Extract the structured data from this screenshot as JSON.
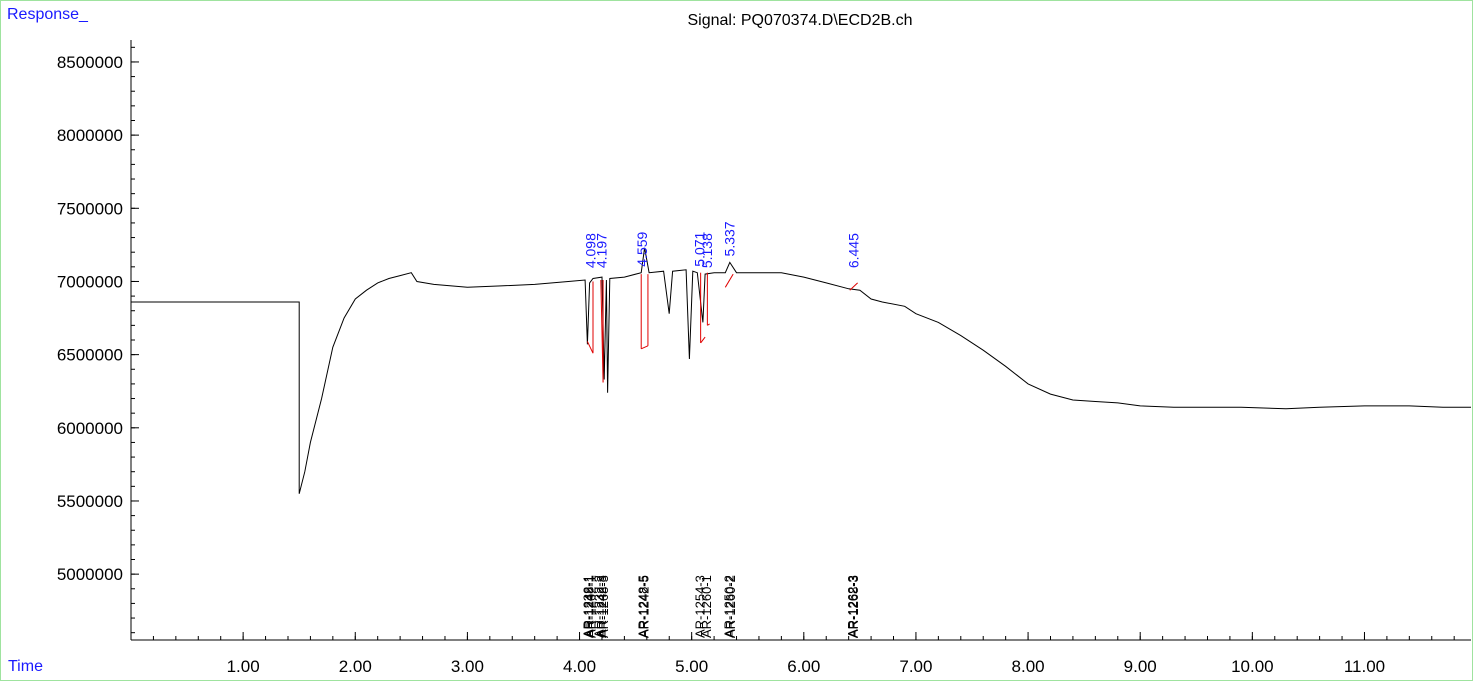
{
  "header": {
    "y_axis_title": "Response_",
    "x_axis_title": "Time",
    "signal_title": "Signal: PQ070374.D\\ECD2B.ch"
  },
  "colors": {
    "trace": "#000000",
    "baseline_segments": "#e00000",
    "peak_labels": "#1a1aff",
    "frame": "#9fe39f"
  },
  "chart_data": {
    "type": "line",
    "title": "Signal: PQ070374.D\\ECD2B.ch",
    "xlabel": "Time",
    "ylabel": "Response_",
    "xlim": [
      0.0,
      11.95
    ],
    "ylim": [
      4550000,
      8650000
    ],
    "x_ticks": [
      1.0,
      2.0,
      3.0,
      4.0,
      5.0,
      6.0,
      7.0,
      8.0,
      9.0,
      10.0,
      11.0
    ],
    "x_tick_labels": [
      "1.00",
      "2.00",
      "3.00",
      "4.00",
      "5.00",
      "6.00",
      "7.00",
      "8.00",
      "9.00",
      "10.00",
      "11.00"
    ],
    "y_ticks": [
      5000000,
      5500000,
      6000000,
      6500000,
      7000000,
      7500000,
      8000000,
      8500000
    ],
    "y_tick_labels": [
      "5000000",
      "5500000",
      "6000000",
      "6500000",
      "7000000",
      "7500000",
      "8000000",
      "8500000"
    ],
    "series": [
      {
        "points": [
          [
            0.0,
            6860000
          ],
          [
            1.5,
            6860000
          ],
          [
            1.5,
            5550000
          ],
          [
            1.55,
            5700000
          ],
          [
            1.6,
            5900000
          ],
          [
            1.7,
            6200000
          ],
          [
            1.8,
            6550000
          ],
          [
            1.9,
            6750000
          ],
          [
            2.0,
            6880000
          ],
          [
            2.1,
            6940000
          ],
          [
            2.2,
            6990000
          ],
          [
            2.3,
            7020000
          ],
          [
            2.4,
            7040000
          ],
          [
            2.5,
            7060000
          ],
          [
            2.55,
            7000000
          ],
          [
            2.7,
            6980000
          ],
          [
            3.0,
            6960000
          ],
          [
            3.3,
            6970000
          ],
          [
            3.6,
            6980000
          ],
          [
            3.9,
            7000000
          ],
          [
            4.05,
            7010000
          ],
          [
            4.07,
            6570000
          ],
          [
            4.09,
            6990000
          ],
          [
            4.12,
            7020000
          ],
          [
            4.2,
            7030000
          ],
          [
            4.22,
            6330000
          ],
          [
            4.24,
            7010000
          ],
          [
            4.25,
            6240000
          ],
          [
            4.27,
            7020000
          ],
          [
            4.4,
            7030000
          ],
          [
            4.55,
            7060000
          ],
          [
            4.58,
            7230000
          ],
          [
            4.62,
            7060000
          ],
          [
            4.75,
            7070000
          ],
          [
            4.8,
            6780000
          ],
          [
            4.83,
            7070000
          ],
          [
            4.95,
            7080000
          ],
          [
            4.98,
            6470000
          ],
          [
            5.01,
            7070000
          ],
          [
            5.05,
            7060000
          ],
          [
            5.1,
            6720000
          ],
          [
            5.12,
            7050000
          ],
          [
            5.2,
            7060000
          ],
          [
            5.3,
            7060000
          ],
          [
            5.34,
            7130000
          ],
          [
            5.4,
            7060000
          ],
          [
            5.6,
            7060000
          ],
          [
            5.8,
            7060000
          ],
          [
            6.0,
            7030000
          ],
          [
            6.2,
            6990000
          ],
          [
            6.4,
            6950000
          ],
          [
            6.5,
            6940000
          ],
          [
            6.6,
            6880000
          ],
          [
            6.7,
            6860000
          ],
          [
            6.9,
            6830000
          ],
          [
            7.0,
            6780000
          ],
          [
            7.2,
            6720000
          ],
          [
            7.4,
            6630000
          ],
          [
            7.6,
            6530000
          ],
          [
            7.8,
            6420000
          ],
          [
            8.0,
            6300000
          ],
          [
            8.2,
            6230000
          ],
          [
            8.4,
            6190000
          ],
          [
            8.6,
            6180000
          ],
          [
            8.8,
            6170000
          ],
          [
            9.0,
            6150000
          ],
          [
            9.3,
            6140000
          ],
          [
            9.6,
            6140000
          ],
          [
            9.9,
            6140000
          ],
          [
            10.3,
            6130000
          ],
          [
            10.6,
            6140000
          ],
          [
            11.0,
            6150000
          ],
          [
            11.4,
            6150000
          ],
          [
            11.7,
            6140000
          ],
          [
            11.95,
            6140000
          ]
        ]
      }
    ],
    "peaks": [
      {
        "rt": 4.098,
        "label": "4.098"
      },
      {
        "rt": 4.197,
        "label": "4.197"
      },
      {
        "rt": 4.559,
        "label": "4.559"
      },
      {
        "rt": 5.071,
        "label": "5.071"
      },
      {
        "rt": 5.138,
        "label": "5.138"
      },
      {
        "rt": 5.337,
        "label": "5.337"
      },
      {
        "rt": 6.445,
        "label": "6.445"
      }
    ],
    "compound_labels": [
      {
        "x": 4.07,
        "label": "AR-1232-1"
      },
      {
        "x": 4.08,
        "label": "AR-1248-1"
      },
      {
        "x": 4.1,
        "label": "AR-1262-1"
      },
      {
        "x": 4.17,
        "label": "AR-1232-2"
      },
      {
        "x": 4.19,
        "label": "AR-1242-3"
      },
      {
        "x": 4.21,
        "label": "AR-1268-3"
      },
      {
        "x": 4.56,
        "label": "AR-1248-5"
      },
      {
        "x": 4.57,
        "label": "AR-1242-5"
      },
      {
        "x": 5.07,
        "label": "AR-1254-3"
      },
      {
        "x": 5.13,
        "label": "AR-1260-1"
      },
      {
        "x": 5.33,
        "label": "AR-1250-2"
      },
      {
        "x": 5.34,
        "label": "AR-1260-2"
      },
      {
        "x": 6.43,
        "label": "AR-1262-3"
      },
      {
        "x": 6.44,
        "label": "AR-1268-3"
      }
    ],
    "baseline_segments": [
      {
        "from": [
          4.07,
          6590000
        ],
        "to": [
          4.12,
          6510000
        ]
      },
      {
        "from": [
          4.12,
          7000000
        ],
        "to": [
          4.12,
          6510000
        ]
      },
      {
        "from": [
          4.19,
          7010000
        ],
        "to": [
          4.21,
          6310000
        ]
      },
      {
        "from": [
          4.21,
          6310000
        ],
        "to": [
          4.21,
          7010000
        ]
      },
      {
        "from": [
          4.55,
          7050000
        ],
        "to": [
          4.55,
          6540000
        ]
      },
      {
        "from": [
          4.55,
          6540000
        ],
        "to": [
          4.61,
          6560000
        ]
      },
      {
        "from": [
          4.61,
          6560000
        ],
        "to": [
          4.61,
          7050000
        ]
      },
      {
        "from": [
          5.08,
          7060000
        ],
        "to": [
          5.08,
          6580000
        ]
      },
      {
        "from": [
          5.08,
          6580000
        ],
        "to": [
          5.12,
          6620000
        ]
      },
      {
        "from": [
          5.14,
          7060000
        ],
        "to": [
          5.14,
          6700000
        ]
      },
      {
        "from": [
          5.14,
          6700000
        ],
        "to": [
          5.16,
          6710000
        ]
      },
      {
        "from": [
          5.3,
          6960000
        ],
        "to": [
          5.37,
          7050000
        ]
      },
      {
        "from": [
          6.41,
          6940000
        ],
        "to": [
          6.48,
          6990000
        ]
      }
    ],
    "grid": false,
    "legend": "none"
  }
}
